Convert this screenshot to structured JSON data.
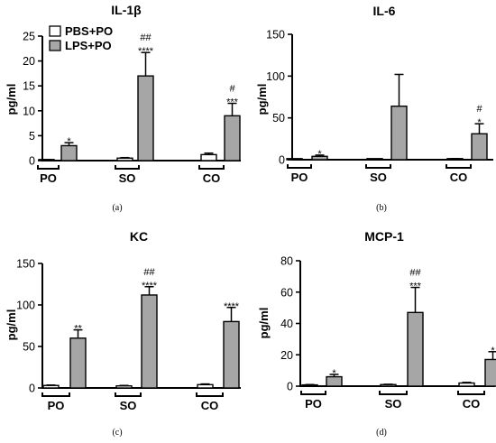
{
  "colors": {
    "pbs": "#ffffff",
    "lps": "#a6a6a6",
    "stroke": "#000000"
  },
  "legend": {
    "pbs_label": "PBS+PO",
    "lps_label": "LPS+PO"
  },
  "chart_data": [
    {
      "type": "bar",
      "panel_label": "(a)",
      "title": "IL-1β",
      "ylabel": "pg/ml",
      "ylim": [
        0,
        25
      ],
      "yticks": [
        "0",
        "5",
        "10",
        "15",
        "20",
        "25"
      ],
      "categories": [
        "PO",
        "SO",
        "CO"
      ],
      "series": [
        {
          "name": "PBS+PO",
          "values": [
            0.1,
            0.5,
            1.2
          ],
          "errors": [
            0.1,
            0.1,
            0.3
          ]
        },
        {
          "name": "LPS+PO",
          "values": [
            3.0,
            17.0,
            9.0
          ],
          "errors": [
            0.6,
            4.7,
            2.5
          ]
        }
      ],
      "annotations": [
        {
          "category": "PO",
          "lines": [
            "*"
          ]
        },
        {
          "category": "SO",
          "lines": [
            "##",
            "****"
          ]
        },
        {
          "category": "CO",
          "lines": [
            "#",
            "***"
          ]
        }
      ],
      "legend": "top-left"
    },
    {
      "type": "bar",
      "panel_label": "(b)",
      "title": "IL-6",
      "ylabel": "pg/ml",
      "ylim": [
        0,
        150
      ],
      "yticks": [
        "0",
        "50",
        "100",
        "150"
      ],
      "categories": [
        "PO",
        "SO",
        "CO"
      ],
      "series": [
        {
          "name": "PBS+PO",
          "values": [
            0.5,
            0.5,
            1.0
          ],
          "errors": [
            0.2,
            0.2,
            0.3
          ]
        },
        {
          "name": "LPS+PO",
          "values": [
            4.0,
            64.0,
            31.0
          ],
          "errors": [
            1.5,
            38.0,
            12.0
          ]
        }
      ],
      "annotations": [
        {
          "category": "PO",
          "lines": [
            "*"
          ]
        },
        {
          "category": "CO",
          "lines": [
            "#",
            "*"
          ]
        }
      ]
    },
    {
      "type": "bar",
      "panel_label": "(c)",
      "title": "KC",
      "ylabel": "pg/ml",
      "ylim": [
        0,
        150
      ],
      "yticks": [
        "0",
        "50",
        "100",
        "150"
      ],
      "categories": [
        "PO",
        "SO",
        "CO"
      ],
      "series": [
        {
          "name": "PBS+PO",
          "values": [
            3.0,
            2.5,
            4.0
          ],
          "errors": [
            0.5,
            0.5,
            0.8
          ]
        },
        {
          "name": "LPS+PO",
          "values": [
            60.0,
            112.0,
            80.0
          ],
          "errors": [
            10.0,
            10.0,
            17.0
          ]
        }
      ],
      "annotations": [
        {
          "category": "PO",
          "lines": [
            "**"
          ]
        },
        {
          "category": "SO",
          "lines": [
            "##",
            "****"
          ]
        },
        {
          "category": "CO",
          "lines": [
            "****"
          ]
        }
      ]
    },
    {
      "type": "bar",
      "panel_label": "(d)",
      "title": "MCP-1",
      "ylabel": "pg/ml",
      "ylim": [
        0,
        80
      ],
      "yticks": [
        "0",
        "20",
        "40",
        "60",
        "80"
      ],
      "categories": [
        "PO",
        "SO",
        "CO"
      ],
      "series": [
        {
          "name": "PBS+PO",
          "values": [
            0.8,
            1.0,
            2.0
          ],
          "errors": [
            0.2,
            0.2,
            0.4
          ]
        },
        {
          "name": "LPS+PO",
          "values": [
            6.0,
            47.0,
            17.0
          ],
          "errors": [
            1.5,
            16.0,
            5.0
          ]
        }
      ],
      "annotations": [
        {
          "category": "PO",
          "lines": [
            "*"
          ]
        },
        {
          "category": "SO",
          "lines": [
            "##",
            "***"
          ]
        },
        {
          "category": "CO",
          "lines": [
            "*"
          ]
        }
      ]
    }
  ]
}
